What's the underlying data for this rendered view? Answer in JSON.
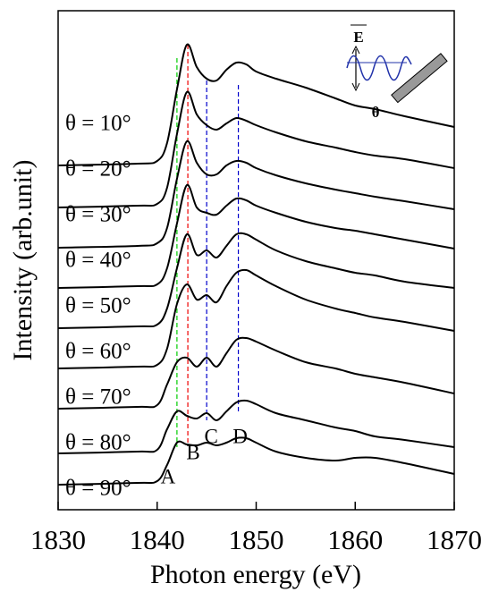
{
  "chart_data": {
    "type": "line",
    "xlabel": "Photon energy (eV)",
    "ylabel": "Intensity (arb.unit)",
    "xlim": [
      1830,
      1870
    ],
    "xticks": [
      1830,
      1840,
      1850,
      1860,
      1870
    ],
    "ylim": [
      0,
      55.8
    ],
    "x": [
      1830,
      1838,
      1840,
      1841,
      1842,
      1843,
      1844,
      1845,
      1846,
      1847,
      1848,
      1849,
      1850,
      1852,
      1855,
      1858,
      1860,
      1862,
      1865,
      1870
    ],
    "series": [
      {
        "name": "θ = 10°",
        "color": "#000000",
        "values": [
          38.5,
          38.7,
          39.0,
          41.0,
          47.0,
          52.0,
          49.5,
          48.2,
          48.0,
          49.2,
          50.0,
          49.8,
          49.0,
          48.2,
          47.2,
          46.0,
          45.2,
          44.8,
          44.0,
          42.8
        ]
      },
      {
        "name": "θ = 20°",
        "color": "#000000",
        "values": [
          33.8,
          34.0,
          34.2,
          36.0,
          42.0,
          46.7,
          44.2,
          43.0,
          42.5,
          43.2,
          43.8,
          43.5,
          43.0,
          42.2,
          41.2,
          40.5,
          40.0,
          39.6,
          39.2,
          38.2
        ]
      },
      {
        "name": "θ = 30°",
        "color": "#000000",
        "values": [
          29.3,
          29.5,
          29.8,
          31.5,
          37.0,
          41.2,
          38.8,
          37.5,
          37.5,
          38.5,
          39.0,
          38.8,
          38.2,
          37.4,
          36.5,
          35.8,
          35.4,
          35.0,
          34.5,
          33.6
        ]
      },
      {
        "name": "θ = 40°",
        "color": "#000000",
        "values": [
          24.8,
          25.0,
          25.2,
          27.0,
          32.0,
          36.3,
          33.8,
          33.2,
          33.0,
          34.0,
          34.8,
          34.6,
          34.0,
          33.2,
          32.2,
          31.5,
          31.2,
          30.8,
          30.2,
          29.2
        ]
      },
      {
        "name": "θ = 50°",
        "color": "#000000",
        "values": [
          20.3,
          20.5,
          20.7,
          22.5,
          27.0,
          30.8,
          28.5,
          29.0,
          28.2,
          29.5,
          30.8,
          30.8,
          30.2,
          29.0,
          27.8,
          27.0,
          26.5,
          26.2,
          25.5,
          24.8
        ]
      },
      {
        "name": "θ = 60°",
        "color": "#000000",
        "values": [
          15.8,
          16.0,
          16.2,
          18.0,
          23.0,
          25.2,
          23.5,
          24.0,
          23.2,
          25.0,
          26.5,
          26.8,
          26.2,
          25.0,
          23.5,
          22.5,
          22.0,
          21.5,
          21.0,
          20.0
        ]
      },
      {
        "name": "θ = 70°",
        "color": "#000000",
        "values": [
          11.3,
          11.5,
          11.7,
          14.0,
          16.5,
          17.0,
          16.0,
          17.0,
          16.0,
          17.5,
          19.0,
          19.2,
          18.8,
          17.8,
          16.5,
          15.8,
          15.2,
          14.8,
          14.2,
          13.0
        ]
      },
      {
        "name": "θ = 80°",
        "color": "#000000",
        "values": [
          6.3,
          6.5,
          6.7,
          9.0,
          11.0,
          10.5,
          10.2,
          10.8,
          10.0,
          11.0,
          12.0,
          12.2,
          11.8,
          10.8,
          10.0,
          9.2,
          8.8,
          8.2,
          7.8,
          7.0
        ]
      },
      {
        "name": "θ = 90°",
        "color": "#000000",
        "values": [
          2.8,
          3.0,
          3.2,
          5.0,
          7.5,
          7.3,
          7.2,
          7.5,
          7.2,
          7.5,
          8.0,
          8.0,
          7.5,
          6.5,
          5.8,
          5.5,
          5.8,
          5.8,
          5.2,
          4.0
        ]
      }
    ],
    "markers": [
      {
        "label": "A",
        "x": 1842,
        "color": "#00cc00"
      },
      {
        "label": "B",
        "x": 1843.1,
        "color": "#ee0000"
      },
      {
        "label": "C",
        "x": 1845,
        "color": "#0000cc"
      },
      {
        "label": "D",
        "x": 1848.2,
        "color": "#0000cc"
      }
    ],
    "inset": {
      "field_label": "E",
      "angle_label": "θ"
    }
  }
}
